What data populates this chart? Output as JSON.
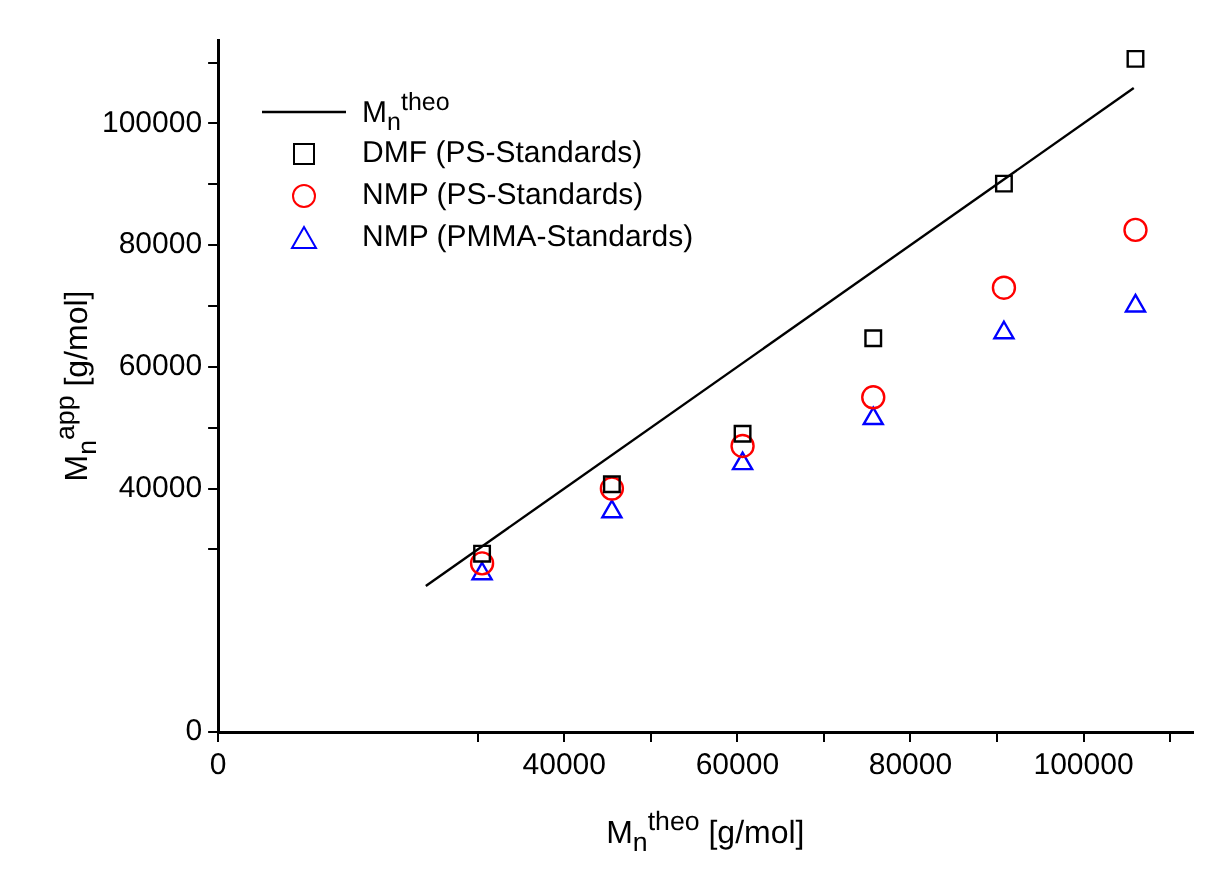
{
  "chart_data": {
    "type": "scatter",
    "xlabel": "M$_{n}$$^{theo}$ [g/mol]",
    "ylabel": "M$_{n}$$^{app}$ [g/mol]",
    "x": [
      30500,
      45500,
      60600,
      75700,
      90800,
      106000
    ],
    "series": [
      {
        "name": "M$_{n}$$^{theo}$",
        "type": "line",
        "color": "#000000",
        "marker": "none",
        "line_style": "solid",
        "x": [
          24000,
          105800
        ],
        "values": [
          24000,
          105800
        ]
      },
      {
        "name": "DMF (PS-Standards)",
        "color": "#000000",
        "marker": "square",
        "values": [
          29300,
          40700,
          49000,
          64700,
          90100,
          110600
        ]
      },
      {
        "name": "NMP (PS-Standards)",
        "color": "#ff0000",
        "marker": "circle",
        "values": [
          27700,
          40000,
          47000,
          55000,
          73000,
          82500
        ]
      },
      {
        "name": "NMP (PMMA-Standards)",
        "color": "#0000ff",
        "marker": "triangle",
        "values": [
          26000,
          36200,
          44100,
          51500,
          65600,
          70000
        ]
      }
    ],
    "xlim": [
      0,
      112600
    ],
    "ylim": [
      0,
      113700
    ],
    "xticks": [
      0,
      {
        "value": 30000,
        "label": null
      },
      40000,
      {
        "value": 50000,
        "label": null
      },
      60000,
      {
        "value": 70000,
        "label": null
      },
      80000,
      {
        "value": 90000,
        "label": null
      },
      100000,
      {
        "value": 110000,
        "label": null
      }
    ],
    "yticks": [
      0,
      {
        "value": 30000,
        "label": null
      },
      40000,
      {
        "value": 50000,
        "label": null
      },
      60000,
      {
        "value": 70000,
        "label": null
      },
      80000,
      {
        "value": 90000,
        "label": null
      },
      100000,
      {
        "value": 110000,
        "label": null
      }
    ],
    "grid": false,
    "legend": "top left"
  }
}
